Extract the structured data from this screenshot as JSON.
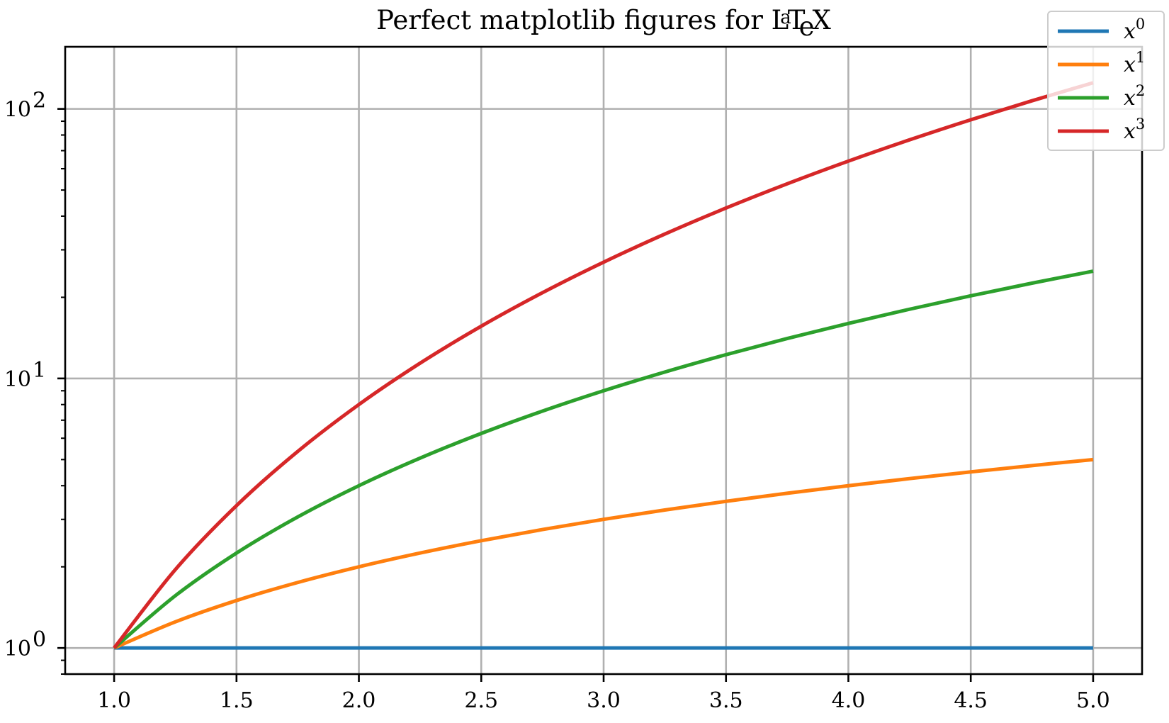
{
  "chart_data": {
    "type": "line",
    "title_text": "Perfect matplotlib figures for ",
    "title_logo": "LaTeX",
    "x": [
      1.0,
      1.25,
      1.5,
      1.75,
      2.0,
      2.25,
      2.5,
      2.75,
      3.0,
      3.25,
      3.5,
      3.75,
      4.0,
      4.25,
      4.5,
      4.75,
      5.0
    ],
    "series": [
      {
        "name": "x0",
        "legend_base": "x",
        "legend_exponent": "0",
        "color": "#1f77b4",
        "values": [
          1,
          1,
          1,
          1,
          1,
          1,
          1,
          1,
          1,
          1,
          1,
          1,
          1,
          1,
          1,
          1,
          1
        ]
      },
      {
        "name": "x1",
        "legend_base": "x",
        "legend_exponent": "1",
        "color": "#ff7f0e",
        "values": [
          1.0,
          1.25,
          1.5,
          1.75,
          2.0,
          2.25,
          2.5,
          2.75,
          3.0,
          3.25,
          3.5,
          3.75,
          4.0,
          4.25,
          4.5,
          4.75,
          5.0
        ]
      },
      {
        "name": "x2",
        "legend_base": "x",
        "legend_exponent": "2",
        "color": "#2ca02c",
        "values": [
          1.0,
          1.5625,
          2.25,
          3.0625,
          4.0,
          5.0625,
          6.25,
          7.5625,
          9.0,
          10.5625,
          12.25,
          14.0625,
          16.0,
          18.0625,
          20.25,
          22.5625,
          25.0
        ]
      },
      {
        "name": "x3",
        "legend_base": "x",
        "legend_exponent": "3",
        "color": "#d62728",
        "values": [
          1.0,
          1.953,
          3.375,
          5.359,
          8.0,
          11.39,
          15.625,
          20.797,
          27.0,
          34.328,
          42.875,
          52.734,
          64.0,
          76.766,
          91.125,
          107.172,
          125.0
        ]
      }
    ],
    "xticks": [
      1.0,
      1.5,
      2.0,
      2.5,
      3.0,
      3.5,
      4.0,
      4.5,
      5.0
    ],
    "xtick_labels": [
      "1.0",
      "1.5",
      "2.0",
      "2.5",
      "3.0",
      "3.5",
      "4.0",
      "4.5",
      "5.0"
    ],
    "yticks": [
      1,
      10,
      100
    ],
    "ytick_labels": [
      {
        "base": "10",
        "exponent": "0"
      },
      {
        "base": "10",
        "exponent": "1"
      },
      {
        "base": "10",
        "exponent": "2"
      }
    ],
    "xlim": [
      0.8,
      5.2
    ],
    "ylim": [
      0.8,
      170
    ],
    "yscale": "log",
    "xlabel": "",
    "ylabel": "",
    "grid": true,
    "legend_position": "top-right"
  }
}
